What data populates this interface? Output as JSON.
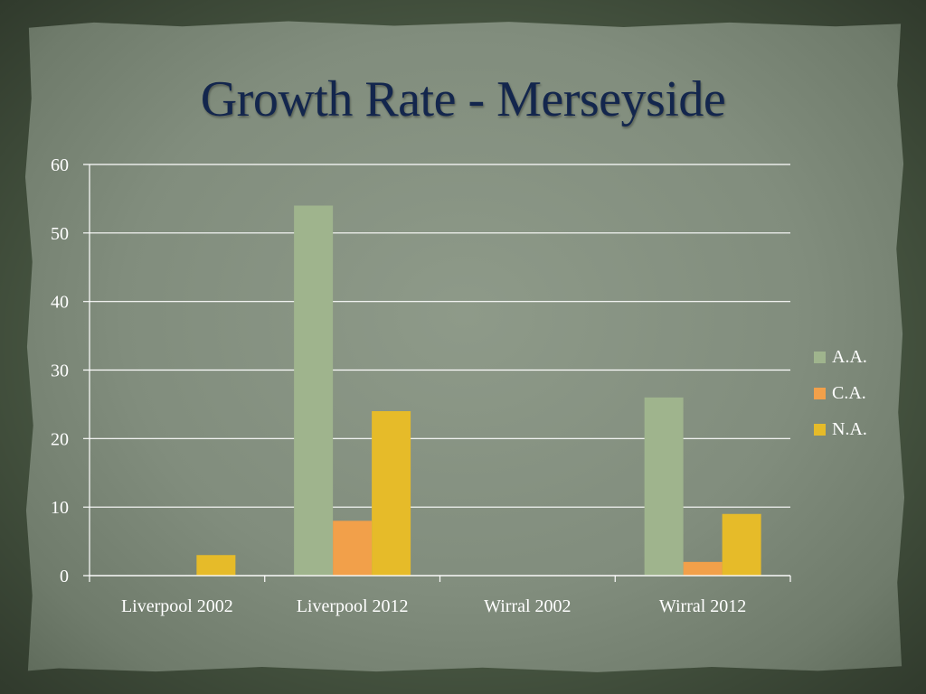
{
  "slide": {
    "title": "Growth Rate - Merseyside"
  },
  "chart_data": {
    "type": "bar",
    "title": "",
    "xlabel": "",
    "ylabel": "",
    "categories": [
      "Liverpool 2002",
      "Liverpool 2012",
      "Wirral 2002",
      "Wirral 2012"
    ],
    "series": [
      {
        "name": "A.A.",
        "color": "#9fb48d",
        "values": [
          0,
          54,
          0,
          26
        ]
      },
      {
        "name": "C.A.",
        "color": "#f2a04a",
        "values": [
          0,
          8,
          0,
          2
        ]
      },
      {
        "name": "N.A.",
        "color": "#e6bb29",
        "values": [
          3,
          24,
          0,
          9
        ]
      }
    ],
    "ylim": [
      0,
      60
    ],
    "yticks": [
      0,
      10,
      20,
      30,
      40,
      50,
      60
    ],
    "grid": true,
    "legend_position": "right"
  }
}
